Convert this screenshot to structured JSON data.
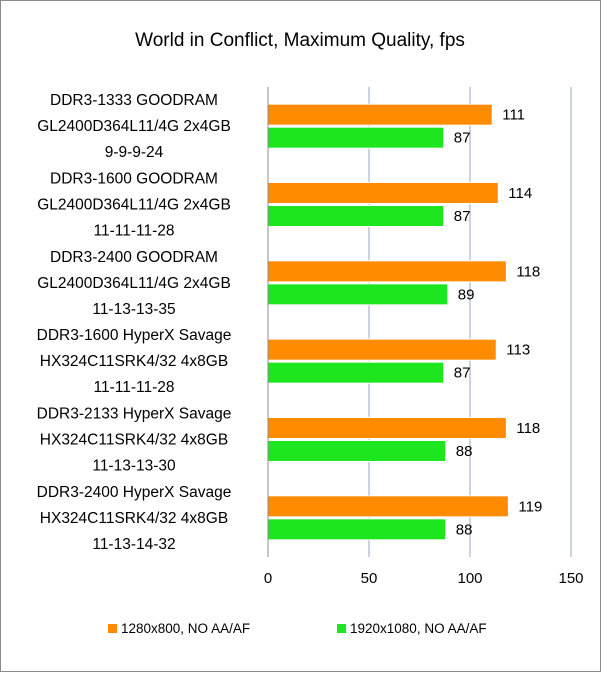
{
  "chart_data": {
    "type": "bar",
    "orientation": "horizontal",
    "title": "World in Conflict, Maximum Quality,  fps",
    "xlabel": "",
    "ylabel": "",
    "xlim": [
      0,
      150
    ],
    "xticks": [
      0,
      50,
      100,
      150
    ],
    "grid": true,
    "legend_position": "bottom",
    "categories": [
      [
        "DDR3-1333 GOODRAM",
        "GL2400D364L11/4G 2x4GB",
        "9-9-9-24"
      ],
      [
        "DDR3-1600 GOODRAM",
        "GL2400D364L11/4G 2x4GB",
        "11-11-11-28"
      ],
      [
        "DDR3-2400 GOODRAM",
        "GL2400D364L11/4G 2x4GB",
        "11-13-13-35"
      ],
      [
        "DDR3-1600 HyperX Savage",
        "HX324C11SRK4/32 4x8GB",
        "11-11-11-28"
      ],
      [
        "DDR3-2133 HyperX Savage",
        "HX324C11SRK4/32 4x8GB",
        "11-13-13-30"
      ],
      [
        "DDR3-2400 HyperX Savage",
        "HX324C11SRK4/32 4x8GB",
        "11-13-14-32"
      ]
    ],
    "series": [
      {
        "name": "1280x800, NO AA/AF",
        "color": "#ff8c00",
        "values": [
          111,
          114,
          118,
          113,
          118,
          119
        ]
      },
      {
        "name": "1920x1080, NO AA/AF",
        "color": "#1ee61e",
        "values": [
          87,
          87,
          89,
          87,
          88,
          88
        ]
      }
    ]
  }
}
